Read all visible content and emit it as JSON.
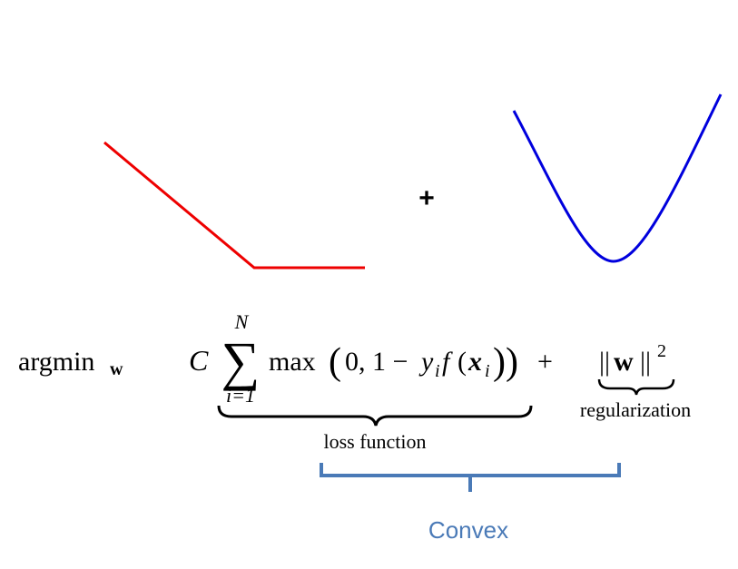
{
  "graphs": {
    "hinge_color": "#ee0000",
    "quadratic_color": "#0000dd",
    "plus": "+"
  },
  "formula": {
    "argmin": "argmin",
    "argmin_sub": "w",
    "C": "C",
    "sum_sym": "∑",
    "sum_top": "N",
    "sum_bottom": "i=1",
    "max": "max",
    "open_paren": "(",
    "zero_one_minus": "0, 1 −",
    "y": "y",
    "y_sub": "i",
    "f": "f",
    "inner_open": "(",
    "x": "x",
    "x_sub": "i",
    "inner_close": "))",
    "plus": "+",
    "norm_left": "||",
    "w": "w",
    "norm_right": "||",
    "power": "2"
  },
  "labels": {
    "loss": "loss function",
    "regularization": "regularization",
    "convex": "Convex",
    "convex_color": "#4a7ab7"
  }
}
